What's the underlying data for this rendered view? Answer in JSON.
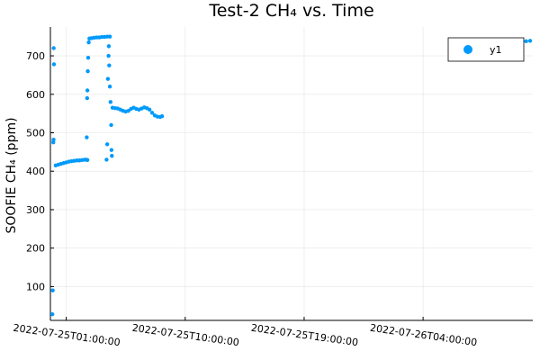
{
  "chart_data": {
    "type": "scatter",
    "title": "Test-2 CH₄ vs. Time",
    "xlabel": "",
    "ylabel": "SOOFIE CH₄ (ppm)",
    "x_ticks": [
      "2022-07-25T01:00:00",
      "2022-07-25T10:00:00",
      "2022-07-25T19:00:00",
      "2022-07-26T04:00:00"
    ],
    "x_tick_hours": [
      0,
      9,
      18,
      27
    ],
    "xlim_hours": [
      -1.2,
      35.3
    ],
    "xlim_note": "hours relative to 2022-07-25T01:00:00",
    "y_ticks": [
      100,
      200,
      300,
      400,
      500,
      600,
      700
    ],
    "ylim": [
      12,
      775
    ],
    "grid": true,
    "legend_position": "top-right",
    "color": "#009AFA",
    "series": [
      {
        "name": "y1",
        "points": [
          [
            -1.05,
            28
          ],
          [
            -1.02,
            90
          ],
          [
            -0.98,
            475
          ],
          [
            -0.96,
            482
          ],
          [
            -0.95,
            720
          ],
          [
            -0.93,
            678
          ],
          [
            -0.8,
            415
          ],
          [
            -0.6,
            417
          ],
          [
            -0.4,
            419
          ],
          [
            -0.2,
            421
          ],
          [
            0.0,
            423
          ],
          [
            0.2,
            425
          ],
          [
            0.4,
            426
          ],
          [
            0.6,
            427
          ],
          [
            0.8,
            428
          ],
          [
            1.0,
            428
          ],
          [
            1.2,
            429
          ],
          [
            1.4,
            430
          ],
          [
            1.5,
            430
          ],
          [
            1.6,
            429
          ],
          [
            1.55,
            488
          ],
          [
            1.58,
            590
          ],
          [
            1.6,
            610
          ],
          [
            1.63,
            660
          ],
          [
            1.66,
            695
          ],
          [
            1.7,
            735
          ],
          [
            1.75,
            745
          ],
          [
            1.9,
            746
          ],
          [
            2.1,
            747
          ],
          [
            2.3,
            748
          ],
          [
            2.5,
            748
          ],
          [
            2.7,
            749
          ],
          [
            2.9,
            749
          ],
          [
            3.1,
            750
          ],
          [
            3.3,
            750
          ],
          [
            3.05,
            430
          ],
          [
            3.1,
            470
          ],
          [
            3.15,
            640
          ],
          [
            3.2,
            700
          ],
          [
            3.22,
            725
          ],
          [
            3.25,
            675
          ],
          [
            3.3,
            620
          ],
          [
            3.35,
            580
          ],
          [
            3.4,
            520
          ],
          [
            3.42,
            455
          ],
          [
            3.45,
            440
          ],
          [
            3.5,
            565
          ],
          [
            3.7,
            564
          ],
          [
            3.9,
            563
          ],
          [
            4.1,
            560
          ],
          [
            4.3,
            557
          ],
          [
            4.5,
            555
          ],
          [
            4.7,
            557
          ],
          [
            4.9,
            562
          ],
          [
            5.1,
            565
          ],
          [
            5.3,
            562
          ],
          [
            5.5,
            560
          ],
          [
            5.7,
            563
          ],
          [
            5.9,
            566
          ],
          [
            6.1,
            564
          ],
          [
            6.3,
            560
          ],
          [
            6.5,
            552
          ],
          [
            6.7,
            545
          ],
          [
            6.9,
            542
          ],
          [
            7.1,
            541
          ],
          [
            7.25,
            543
          ],
          [
            33.6,
            735
          ],
          [
            33.9,
            736
          ],
          [
            34.2,
            738
          ],
          [
            34.5,
            737
          ],
          [
            34.8,
            738
          ],
          [
            35.1,
            739
          ]
        ]
      }
    ]
  }
}
